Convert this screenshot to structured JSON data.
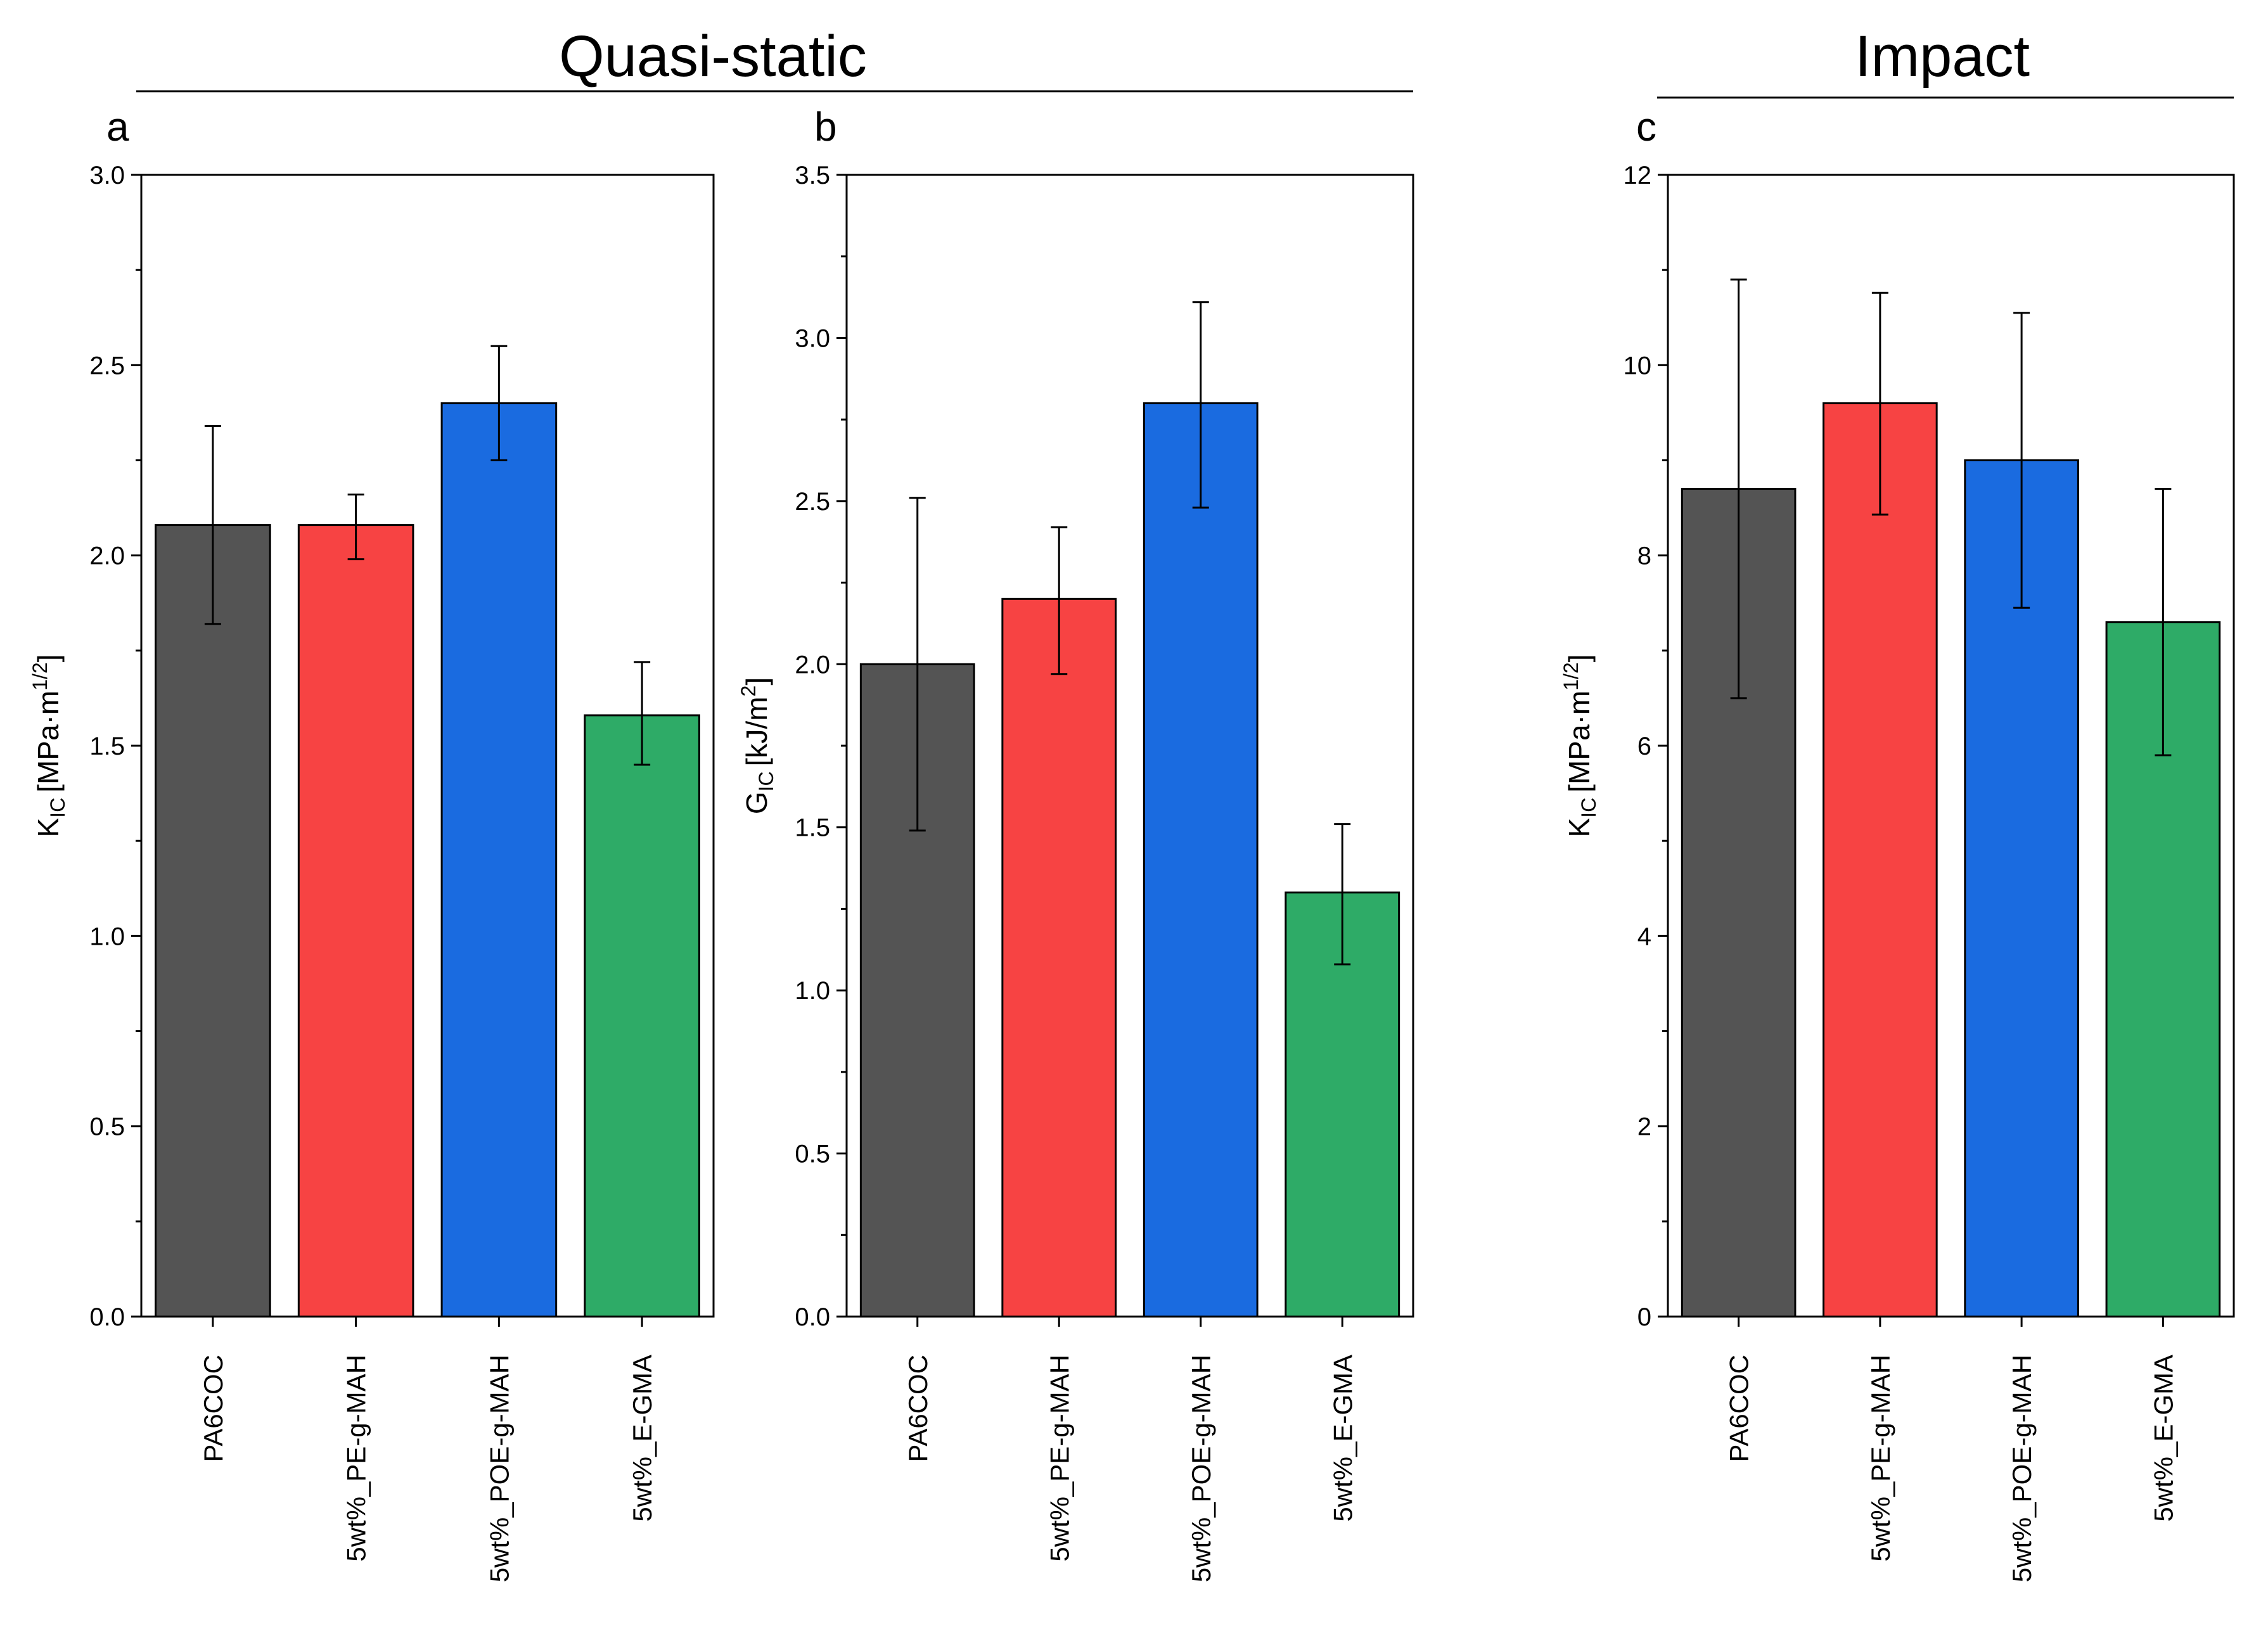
{
  "groups": [
    {
      "title": "Quasi-static"
    },
    {
      "title": "Impact"
    }
  ],
  "colors": {
    "PA6COC": "#545454",
    "5wt%_PE-g-MAH": "#f74343",
    "5wt%_POE-g-MAH": "#1a6be0",
    "5wt%_E-GMA": "#2eab67"
  },
  "chart_data": [
    {
      "panel": "a",
      "type": "bar",
      "categories": [
        "PA6COC",
        "5wt%_PE-g-MAH",
        "5wt%_POE-g-MAH",
        "5wt%_E-GMA"
      ],
      "values": [
        2.08,
        2.08,
        2.4,
        1.58
      ],
      "errors": [
        [
          1.82,
          2.34
        ],
        [
          1.99,
          2.16
        ],
        [
          2.25,
          2.55
        ],
        [
          1.45,
          1.72
        ]
      ],
      "ylabel_main": "K",
      "ylabel_sub": "IC",
      "ylabel_unit": "[MPa·m",
      "ylabel_sup": "1/2",
      "ylabel_close": "]",
      "ylim": [
        0,
        3.0
      ],
      "yticks": [
        "0.0",
        "0.5",
        "1.0",
        "1.5",
        "2.0",
        "2.5",
        "3.0"
      ],
      "ytick_values": [
        0,
        0.5,
        1.0,
        1.5,
        2.0,
        2.5,
        3.0
      ]
    },
    {
      "panel": "b",
      "type": "bar",
      "categories": [
        "PA6COC",
        "5wt%_PE-g-MAH",
        "5wt%_POE-g-MAH",
        "5wt%_E-GMA"
      ],
      "values": [
        2.0,
        2.2,
        2.8,
        1.3
      ],
      "errors": [
        [
          1.49,
          2.51
        ],
        [
          1.97,
          2.42
        ],
        [
          2.48,
          3.11
        ],
        [
          1.08,
          1.51
        ]
      ],
      "ylabel_main": "G",
      "ylabel_sub": "IC",
      "ylabel_unit": "[kJ/m",
      "ylabel_sup": "2",
      "ylabel_close": "]",
      "ylim": [
        0,
        3.5
      ],
      "yticks": [
        "0.0",
        "0.5",
        "1.0",
        "1.5",
        "2.0",
        "2.5",
        "3.0",
        "3.5"
      ],
      "ytick_values": [
        0,
        0.5,
        1.0,
        1.5,
        2.0,
        2.5,
        3.0,
        3.5
      ]
    },
    {
      "panel": "c",
      "type": "bar",
      "categories": [
        "PA6COC",
        "5wt%_PE-g-MAH",
        "5wt%_POE-g-MAH",
        "5wt%_E-GMA"
      ],
      "values": [
        8.7,
        9.6,
        9.0,
        7.3
      ],
      "errors": [
        [
          6.5,
          10.9
        ],
        [
          8.43,
          10.76
        ],
        [
          7.45,
          10.55
        ],
        [
          5.9,
          8.7
        ]
      ],
      "ylabel_main": "K",
      "ylabel_sub": "IC",
      "ylabel_unit": "[MPa·m",
      "ylabel_sup": "1/2",
      "ylabel_close": "]",
      "ylim": [
        0,
        12
      ],
      "yticks": [
        "0",
        "2",
        "4",
        "6",
        "8",
        "10",
        "12"
      ],
      "ytick_values": [
        0,
        2,
        4,
        6,
        8,
        10,
        12
      ]
    }
  ]
}
